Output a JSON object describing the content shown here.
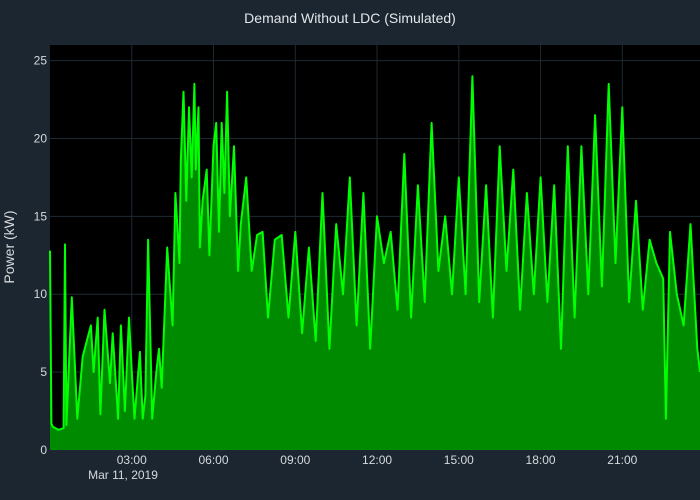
{
  "chart_data": {
    "type": "area",
    "title": "Demand Without LDC (Simulated)",
    "xlabel": "",
    "ylabel": "Power (kW)",
    "date_label": "Mar 11, 2019",
    "x_range_hours": [
      0.0,
      23.85
    ],
    "ylim": [
      0,
      26
    ],
    "y_ticks": [
      0,
      5,
      10,
      15,
      20,
      25
    ],
    "x_ticks": [
      {
        "hour": 3,
        "label": "03:00"
      },
      {
        "hour": 6,
        "label": "06:00"
      },
      {
        "hour": 9,
        "label": "09:00"
      },
      {
        "hour": 12,
        "label": "12:00"
      },
      {
        "hour": 15,
        "label": "15:00"
      },
      {
        "hour": 18,
        "label": "18:00"
      },
      {
        "hour": 21,
        "label": "21:00"
      }
    ],
    "grid": true,
    "series": [
      {
        "color": "#00ff00",
        "fill_color": "#008a00",
        "x_hours": [
          0.0,
          0.05,
          0.1,
          0.3,
          0.5,
          0.55,
          0.6,
          0.8,
          1.0,
          1.2,
          1.5,
          1.6,
          1.75,
          1.85,
          2.0,
          2.2,
          2.3,
          2.5,
          2.6,
          2.75,
          2.9,
          3.0,
          3.1,
          3.3,
          3.4,
          3.5,
          3.6,
          3.75,
          3.9,
          4.0,
          4.1,
          4.3,
          4.5,
          4.6,
          4.75,
          4.8,
          4.9,
          5.0,
          5.1,
          5.2,
          5.3,
          5.35,
          5.45,
          5.5,
          5.6,
          5.75,
          5.85,
          6.0,
          6.1,
          6.2,
          6.3,
          6.4,
          6.5,
          6.6,
          6.75,
          6.9,
          7.0,
          7.2,
          7.4,
          7.6,
          7.8,
          8.0,
          8.25,
          8.5,
          8.75,
          9.0,
          9.25,
          9.5,
          9.75,
          10.0,
          10.25,
          10.5,
          10.75,
          11.0,
          11.25,
          11.5,
          11.75,
          12.0,
          12.25,
          12.5,
          12.75,
          13.0,
          13.25,
          13.5,
          13.75,
          14.0,
          14.25,
          14.5,
          14.75,
          15.0,
          15.25,
          15.5,
          15.75,
          16.0,
          16.25,
          16.5,
          16.75,
          17.0,
          17.25,
          17.5,
          17.75,
          18.0,
          18.25,
          18.5,
          18.75,
          19.0,
          19.25,
          19.5,
          19.75,
          20.0,
          20.25,
          20.5,
          20.75,
          21.0,
          21.25,
          21.5,
          21.75,
          22.0,
          22.25,
          22.5,
          22.6,
          22.75,
          23.0,
          23.25,
          23.5,
          23.75,
          23.85
        ],
        "values": [
          12.8,
          1.7,
          1.5,
          1.3,
          1.4,
          13.2,
          1.6,
          9.8,
          2.0,
          6.0,
          8.0,
          5.0,
          8.5,
          2.3,
          9.0,
          4.3,
          7.5,
          2.0,
          8.0,
          2.5,
          8.5,
          5.0,
          2.0,
          6.3,
          2.0,
          3.5,
          13.5,
          2.0,
          5.0,
          6.5,
          4.0,
          13.0,
          8.0,
          16.5,
          12.0,
          18.5,
          23.0,
          16.0,
          22.0,
          17.5,
          23.5,
          18.0,
          22.0,
          13.0,
          16.0,
          18.0,
          12.5,
          19.5,
          21.0,
          14.0,
          21.0,
          16.5,
          23.0,
          15.0,
          19.5,
          11.5,
          14.5,
          17.5,
          11.5,
          13.8,
          14.0,
          8.5,
          13.5,
          13.8,
          8.5,
          14.0,
          7.5,
          13.0,
          7.0,
          16.5,
          6.5,
          14.5,
          10.0,
          17.5,
          8.0,
          16.5,
          6.5,
          15.0,
          12.0,
          14.0,
          9.0,
          19.0,
          8.5,
          17.0,
          9.5,
          21.0,
          11.5,
          15.0,
          10.0,
          17.5,
          10.0,
          24.0,
          9.5,
          17.0,
          8.5,
          19.5,
          11.5,
          18.0,
          9.0,
          16.5,
          10.0,
          17.5,
          9.5,
          17.0,
          6.5,
          19.5,
          8.5,
          19.5,
          10.0,
          21.5,
          10.5,
          23.5,
          12.0,
          22.0,
          9.5,
          16.0,
          9.0,
          13.5,
          12.0,
          11.0,
          2.0,
          14.0,
          10.0,
          8.0,
          14.5,
          6.5,
          5.0
        ]
      }
    ]
  }
}
